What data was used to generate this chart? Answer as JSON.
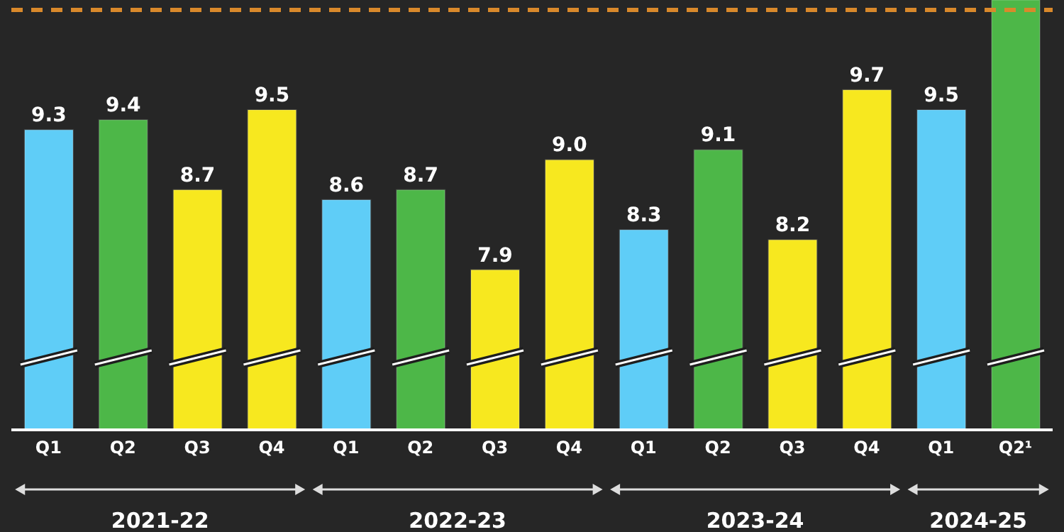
{
  "chart_data": {
    "type": "bar",
    "categories": [
      "Q1",
      "Q2",
      "Q3",
      "Q4",
      "Q1",
      "Q2",
      "Q3",
      "Q4",
      "Q1",
      "Q2",
      "Q3",
      "Q4",
      "Q1",
      "Q2¹"
    ],
    "values": [
      9.3,
      9.4,
      8.7,
      9.5,
      8.6,
      8.7,
      7.9,
      9.0,
      8.3,
      9.1,
      8.2,
      9.7,
      9.5,
      10.6
    ],
    "value_labels": [
      "9.3",
      "9.4",
      "8.7",
      "9.5",
      "8.6",
      "8.7",
      "7.9",
      "9.0",
      "8.3",
      "9.1",
      "8.2",
      "9.7",
      "9.5",
      null
    ],
    "colors": [
      "#5fcdf7",
      "#4db748",
      "#f7e81f",
      "#f7e81f",
      "#5fcdf7",
      "#4db748",
      "#f7e81f",
      "#f7e81f",
      "#5fcdf7",
      "#4db748",
      "#f7e81f",
      "#f7e81f",
      "#5fcdf7",
      "#4db748"
    ],
    "ylim": [
      6.3,
      10.6
    ],
    "ref_lines": [
      {
        "axis": "y",
        "value": 10.5,
        "color": "#d9892b",
        "line_style": "dashed"
      }
    ],
    "annotations": [
      "2021-22",
      "2022-23",
      "2023-24",
      "2024-25"
    ],
    "grid": false,
    "legend": false
  }
}
